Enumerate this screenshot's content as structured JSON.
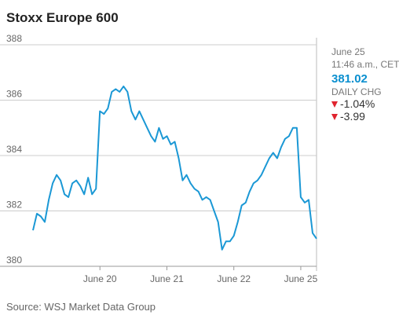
{
  "chart_data": {
    "type": "line",
    "title": "Stoxx Europe 600",
    "source": "Source: WSJ Market Data Group",
    "categories": [
      null,
      null,
      null,
      null,
      null,
      null,
      null,
      null,
      null,
      null,
      null,
      null,
      null,
      null,
      null,
      null,
      null,
      "June 20",
      null,
      null,
      null,
      null,
      null,
      null,
      null,
      null,
      null,
      null,
      null,
      null,
      null,
      null,
      null,
      null,
      "June 21",
      null,
      null,
      null,
      null,
      null,
      null,
      null,
      null,
      null,
      null,
      null,
      null,
      null,
      null,
      null,
      null,
      "June 22",
      null,
      null,
      null,
      null,
      null,
      null,
      null,
      null,
      null,
      null,
      null,
      null,
      null,
      null,
      null,
      null,
      "June 25",
      null,
      null,
      null,
      null
    ],
    "values": [
      381.3,
      381.9,
      381.8,
      381.6,
      382.4,
      383.0,
      383.3,
      383.1,
      382.6,
      382.5,
      383.0,
      383.1,
      382.9,
      382.6,
      383.2,
      382.6,
      382.8,
      385.6,
      385.5,
      385.7,
      386.3,
      386.4,
      386.3,
      386.5,
      386.3,
      385.6,
      385.3,
      385.6,
      385.3,
      385.0,
      384.7,
      384.5,
      385.0,
      384.6,
      384.7,
      384.4,
      384.5,
      383.9,
      383.1,
      383.3,
      383.0,
      382.8,
      382.7,
      382.4,
      382.5,
      382.4,
      382.0,
      381.6,
      380.6,
      380.9,
      380.9,
      381.1,
      381.6,
      382.2,
      382.3,
      382.7,
      383.0,
      383.1,
      383.3,
      383.6,
      383.9,
      384.1,
      383.9,
      384.3,
      384.6,
      384.7,
      385.0,
      385.0,
      382.5,
      382.3,
      382.4,
      381.2,
      381.0
    ],
    "color": "#1b98d5",
    "ylim": [
      380,
      388
    ],
    "yticks": [
      380,
      382,
      384,
      386,
      388
    ],
    "grid": true
  },
  "info": {
    "date": "June 25",
    "time": "11:46 a.m., CET",
    "price": "381.02",
    "change_label": "DAILY CHG",
    "change_pct": "-1.04%",
    "change_abs": "-3.99"
  }
}
